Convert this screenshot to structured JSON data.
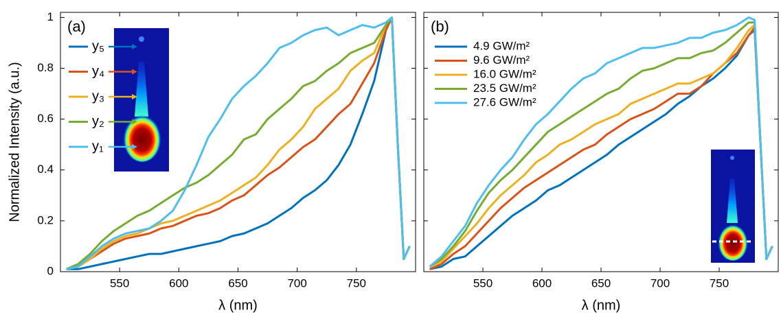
{
  "chart_data": [
    {
      "type": "line",
      "panel_label": "(a)",
      "xlabel": "λ (nm)",
      "ylabel": "Normalized Intensity (a.u.)",
      "xlim": [
        500,
        800
      ],
      "xticks": [
        550,
        600,
        650,
        700,
        750
      ],
      "ylim": [
        0,
        1.02
      ],
      "yticks": [
        0,
        0.2,
        0.4,
        0.6,
        0.8,
        1
      ],
      "show_ytick_labels": true,
      "legend": "arrows",
      "x": [
        505,
        515,
        525,
        535,
        545,
        555,
        565,
        575,
        585,
        595,
        605,
        615,
        625,
        635,
        645,
        655,
        665,
        675,
        685,
        695,
        705,
        715,
        725,
        735,
        745,
        755,
        765,
        775,
        780,
        785,
        790,
        795
      ],
      "series": [
        {
          "name": "y₅",
          "color": "#0072BD",
          "values": [
            0.01,
            0.01,
            0.02,
            0.03,
            0.04,
            0.05,
            0.06,
            0.07,
            0.07,
            0.08,
            0.09,
            0.1,
            0.11,
            0.12,
            0.14,
            0.15,
            0.17,
            0.19,
            0.22,
            0.25,
            0.29,
            0.32,
            0.36,
            0.42,
            0.5,
            0.62,
            0.75,
            0.95,
            1.0,
            0.5,
            0.05,
            0.1
          ]
        },
        {
          "name": "y₄",
          "color": "#D95319",
          "values": [
            0.01,
            0.02,
            0.05,
            0.08,
            0.11,
            0.13,
            0.14,
            0.15,
            0.17,
            0.18,
            0.2,
            0.22,
            0.23,
            0.25,
            0.28,
            0.3,
            0.34,
            0.38,
            0.41,
            0.45,
            0.49,
            0.52,
            0.57,
            0.62,
            0.66,
            0.74,
            0.82,
            0.95,
            1.0,
            0.5,
            0.05,
            0.1
          ]
        },
        {
          "name": "y₃",
          "color": "#EDB120",
          "values": [
            0.01,
            0.02,
            0.05,
            0.09,
            0.12,
            0.14,
            0.15,
            0.17,
            0.19,
            0.2,
            0.22,
            0.24,
            0.26,
            0.28,
            0.31,
            0.34,
            0.37,
            0.42,
            0.48,
            0.52,
            0.57,
            0.64,
            0.68,
            0.72,
            0.79,
            0.83,
            0.86,
            0.97,
            1.0,
            0.5,
            0.05,
            0.1
          ]
        },
        {
          "name": "y₂",
          "color": "#77AC30",
          "values": [
            0.01,
            0.03,
            0.07,
            0.12,
            0.16,
            0.19,
            0.22,
            0.24,
            0.27,
            0.3,
            0.33,
            0.35,
            0.38,
            0.42,
            0.46,
            0.52,
            0.54,
            0.6,
            0.64,
            0.68,
            0.73,
            0.75,
            0.79,
            0.82,
            0.86,
            0.88,
            0.9,
            0.97,
            1.0,
            0.5,
            0.05,
            0.1
          ]
        },
        {
          "name": "y₁",
          "color": "#4DBEEE",
          "values": [
            0.01,
            0.02,
            0.06,
            0.1,
            0.13,
            0.15,
            0.16,
            0.17,
            0.2,
            0.24,
            0.32,
            0.42,
            0.53,
            0.6,
            0.68,
            0.73,
            0.77,
            0.82,
            0.88,
            0.9,
            0.93,
            0.95,
            0.96,
            0.93,
            0.95,
            0.97,
            0.96,
            0.98,
            1.0,
            0.5,
            0.05,
            0.1
          ]
        }
      ]
    },
    {
      "type": "line",
      "panel_label": "(b)",
      "xlabel": "λ (nm)",
      "xlim": [
        500,
        800
      ],
      "xticks": [
        550,
        600,
        650,
        700,
        750
      ],
      "ylim": [
        0,
        1.02
      ],
      "yticks": [
        0,
        0.2,
        0.4,
        0.6,
        0.8,
        1
      ],
      "show_ytick_labels": false,
      "legend": "upper left",
      "x": [
        505,
        515,
        525,
        535,
        545,
        555,
        565,
        575,
        585,
        595,
        605,
        615,
        625,
        635,
        645,
        655,
        665,
        675,
        685,
        695,
        705,
        715,
        725,
        735,
        745,
        755,
        765,
        775,
        780,
        785,
        790,
        795
      ],
      "series": [
        {
          "name": "4.9 GW/m²",
          "color": "#0072BD",
          "values": [
            0.01,
            0.02,
            0.05,
            0.06,
            0.1,
            0.14,
            0.18,
            0.22,
            0.25,
            0.28,
            0.32,
            0.34,
            0.37,
            0.4,
            0.43,
            0.46,
            0.5,
            0.53,
            0.56,
            0.59,
            0.62,
            0.66,
            0.69,
            0.73,
            0.76,
            0.8,
            0.85,
            0.93,
            0.95,
            0.5,
            0.05,
            0.1
          ]
        },
        {
          "name": "9.6 GW/m²",
          "color": "#D95319",
          "values": [
            0.01,
            0.03,
            0.07,
            0.1,
            0.15,
            0.2,
            0.25,
            0.29,
            0.33,
            0.36,
            0.39,
            0.42,
            0.45,
            0.48,
            0.5,
            0.54,
            0.57,
            0.6,
            0.62,
            0.64,
            0.67,
            0.7,
            0.7,
            0.73,
            0.78,
            0.82,
            0.86,
            0.93,
            0.96,
            0.5,
            0.05,
            0.1
          ]
        },
        {
          "name": "16.0 GW/m²",
          "color": "#EDB120",
          "values": [
            0.02,
            0.04,
            0.09,
            0.14,
            0.19,
            0.25,
            0.3,
            0.34,
            0.38,
            0.43,
            0.46,
            0.5,
            0.52,
            0.55,
            0.58,
            0.6,
            0.62,
            0.66,
            0.68,
            0.7,
            0.72,
            0.74,
            0.74,
            0.76,
            0.78,
            0.82,
            0.88,
            0.95,
            0.97,
            0.5,
            0.05,
            0.1
          ]
        },
        {
          "name": "23.5 GW/m²",
          "color": "#77AC30",
          "values": [
            0.02,
            0.05,
            0.1,
            0.16,
            0.24,
            0.31,
            0.36,
            0.4,
            0.45,
            0.5,
            0.55,
            0.58,
            0.61,
            0.64,
            0.67,
            0.7,
            0.72,
            0.76,
            0.79,
            0.8,
            0.82,
            0.84,
            0.84,
            0.86,
            0.87,
            0.9,
            0.94,
            0.98,
            0.98,
            0.5,
            0.05,
            0.1
          ]
        },
        {
          "name": "27.6 GW/m²",
          "color": "#4DBEEE",
          "values": [
            0.02,
            0.06,
            0.12,
            0.18,
            0.27,
            0.34,
            0.4,
            0.45,
            0.52,
            0.58,
            0.62,
            0.67,
            0.72,
            0.76,
            0.78,
            0.82,
            0.84,
            0.86,
            0.88,
            0.88,
            0.89,
            0.9,
            0.92,
            0.92,
            0.94,
            0.95,
            0.97,
            1.0,
            0.99,
            0.5,
            0.05,
            0.1
          ]
        }
      ]
    }
  ]
}
